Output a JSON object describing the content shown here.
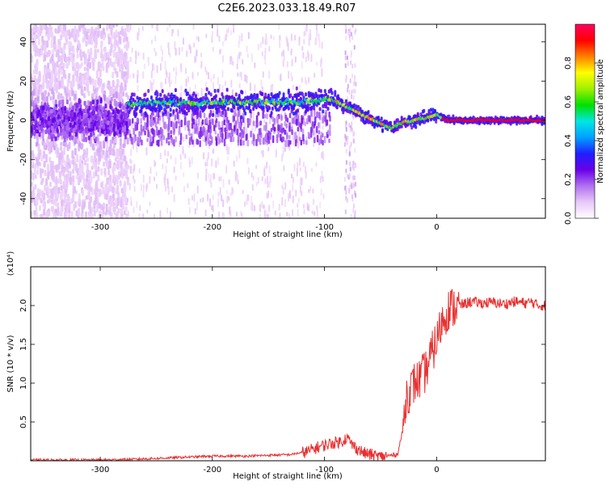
{
  "figure_title": "C2E6.2023.033.18.49.R07",
  "chart_data": [
    {
      "type": "heatmap",
      "name": "spectrogram",
      "xlabel": "Height of straight line (km)",
      "ylabel": "Frequency (Hz)",
      "xlim": [
        -362,
        97
      ],
      "ylim": [
        -50,
        49
      ],
      "x_ticks": [
        -300,
        -200,
        -100,
        0
      ],
      "y_ticks": [
        -40,
        -20,
        0,
        20,
        40
      ],
      "colorbar": {
        "label": "Normalized spectral amplitude",
        "range": [
          0.0,
          1.0
        ],
        "ticks": [
          0.0,
          0.2,
          0.4,
          0.6,
          0.8
        ],
        "colormap": [
          "#ffffff",
          "#e8c8f8",
          "#b070f0",
          "#6a00e8",
          "#1f1fff",
          "#00a0ff",
          "#00e6e6",
          "#00e000",
          "#a0f000",
          "#ffff00",
          "#ff8000",
          "#ff0000",
          "#ff0060"
        ]
      },
      "ridge": {
        "x": [
          -275,
          -250,
          -200,
          -150,
          -110,
          -95,
          -80,
          -60,
          -40,
          -30,
          -20,
          -10,
          0,
          10,
          97
        ],
        "y": [
          8,
          9,
          9,
          9,
          10,
          11,
          7,
          1,
          -4,
          -1,
          0,
          1,
          3,
          0,
          0
        ]
      },
      "noise_region": [
        -362,
        -275
      ]
    },
    {
      "type": "line",
      "name": "snr",
      "xlabel": "Height of straight line (km)",
      "ylabel": "SNR (10 * v/v)",
      "multiplier_label": "(x10⁴)",
      "xlim": [
        -362,
        97
      ],
      "ylim": [
        0,
        2.5
      ],
      "x_ticks": [
        -300,
        -200,
        -100,
        0
      ],
      "y_ticks": [
        0.5,
        1.0,
        1.5,
        2.0
      ],
      "y_tick_labels": [
        "0.5",
        "1.0",
        "1.5",
        "2.0"
      ],
      "line_color": "#e83030",
      "series": [
        {
          "x": [
            -362,
            -300,
            -270,
            -250,
            -200,
            -170,
            -130,
            -115,
            -105,
            -95,
            -85,
            -80,
            -75,
            -65,
            -50,
            -35,
            -30,
            -27,
            -24,
            -20,
            -15,
            -10,
            -5,
            0,
            5,
            10,
            20,
            25,
            30,
            40,
            50,
            60,
            70,
            80,
            85,
            90,
            97
          ],
          "values": [
            0.01,
            0.01,
            0.02,
            0.03,
            0.06,
            0.06,
            0.08,
            0.12,
            0.18,
            0.22,
            0.25,
            0.3,
            0.2,
            0.1,
            0.05,
            0.08,
            0.4,
            0.85,
            0.9,
            1.0,
            1.05,
            1.15,
            1.35,
            1.55,
            1.8,
            1.95,
            2.0,
            2.02,
            2.05,
            2.03,
            2.04,
            2.02,
            2.05,
            2.03,
            2.05,
            2.0,
            2.0
          ]
        }
      ]
    }
  ]
}
